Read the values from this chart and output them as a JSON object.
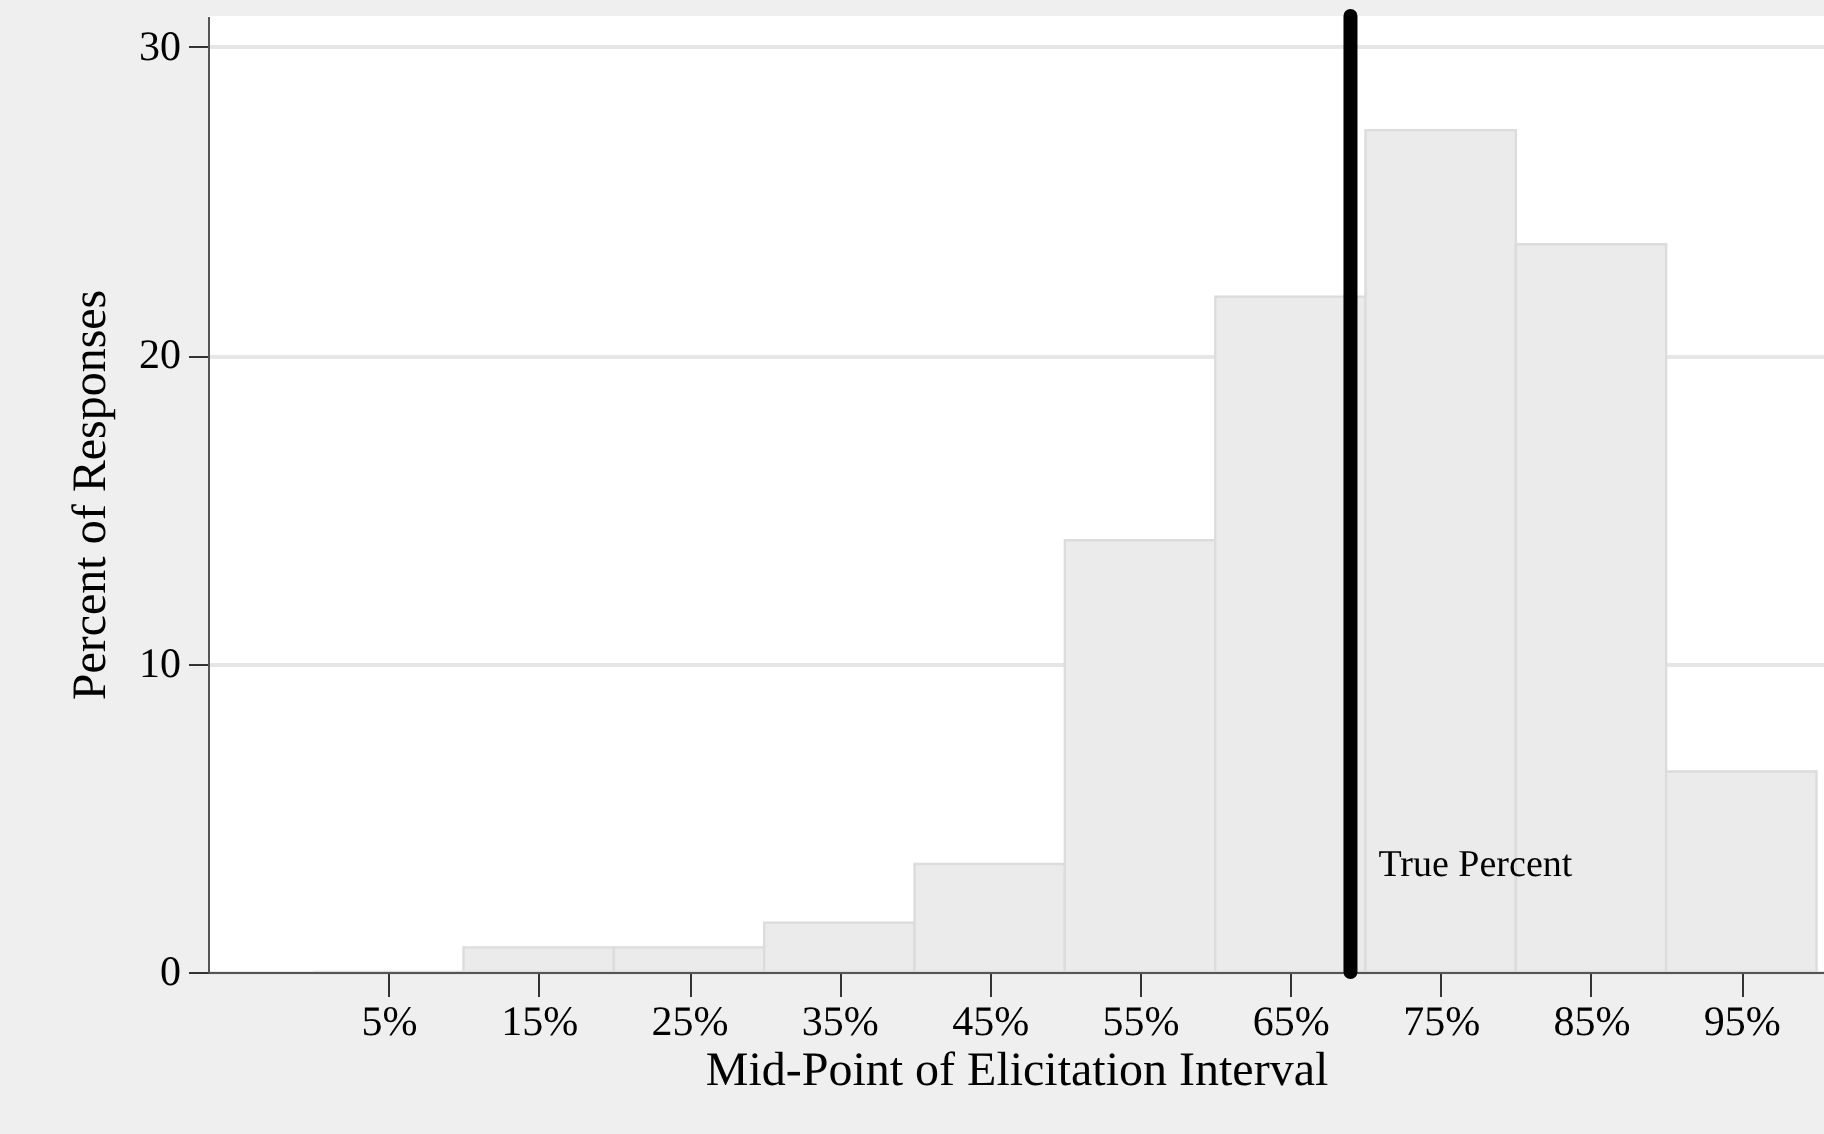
{
  "chart_data": {
    "type": "histogram",
    "xlabel": "Mid-Point of Elicitation Interval",
    "ylabel": "Percent of Responses",
    "bins": [
      0,
      10,
      20,
      30,
      40,
      50,
      60,
      70,
      80,
      90,
      100
    ],
    "values": [
      0,
      0.8,
      0.8,
      1.6,
      3.5,
      14.0,
      21.9,
      27.3,
      23.6,
      6.5
    ],
    "color": "#ebebeb",
    "xlim": [
      -7,
      100.5
    ],
    "ylim": [
      0,
      31
    ],
    "xticks": [
      {
        "value": 5,
        "label": "5%"
      },
      {
        "value": 15,
        "label": "15%"
      },
      {
        "value": 25,
        "label": "25%"
      },
      {
        "value": 35,
        "label": "35%"
      },
      {
        "value": 45,
        "label": "45%"
      },
      {
        "value": 55,
        "label": "55%"
      },
      {
        "value": 65,
        "label": "65%"
      },
      {
        "value": 75,
        "label": "75%"
      },
      {
        "value": 85,
        "label": "85%"
      },
      {
        "value": 95,
        "label": "95%"
      }
    ],
    "yticks": [
      0,
      10,
      20,
      30
    ],
    "ref_lines": [
      {
        "axis": "x",
        "value": 69,
        "label": "True Percent",
        "color": "#000000"
      }
    ],
    "grid": "y"
  }
}
